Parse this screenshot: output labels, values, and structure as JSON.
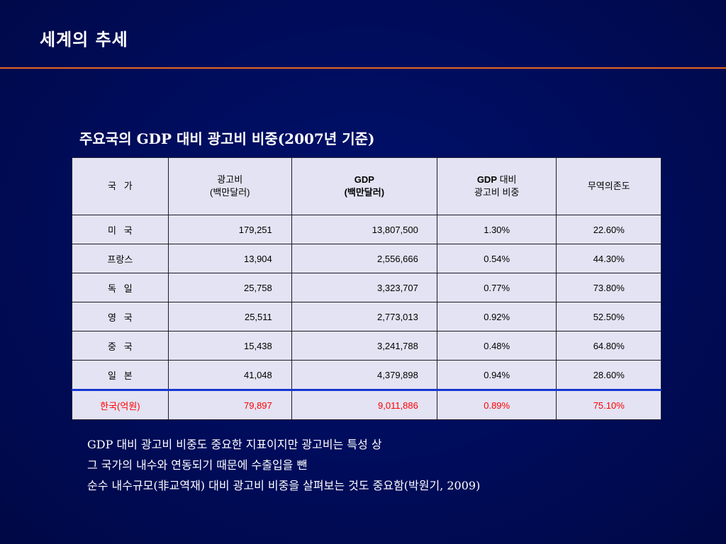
{
  "slide": {
    "title": "세계의 추세",
    "accent_color": "#e06a1f",
    "background_color": "#000c5a"
  },
  "table": {
    "caption": "주요국의 GDP 대비 광고비 비중(2007년 기준)",
    "headers": {
      "country": "국   가",
      "ad_line1": "광고비",
      "ad_line2": "(백만달러)",
      "gdp_line1": "GDP",
      "gdp_line2": "(백만달러)",
      "ratio_line1_bold": "GDP",
      "ratio_line1_rest": " 대비",
      "ratio_line2": "광고비 비중",
      "trade": "무역의존도"
    },
    "rows": [
      {
        "country": "미   국",
        "ad": "179,251",
        "gdp": "13,807,500",
        "ratio": "1.30%",
        "trade": "22.60%"
      },
      {
        "country": "프랑스",
        "ad": "13,904",
        "gdp": "2,556,666",
        "ratio": "0.54%",
        "trade": "44.30%"
      },
      {
        "country": "독   일",
        "ad": "25,758",
        "gdp": "3,323,707",
        "ratio": "0.77%",
        "trade": "73.80%"
      },
      {
        "country": "영   국",
        "ad": "25,511",
        "gdp": "2,773,013",
        "ratio": "0.92%",
        "trade": "52.50%"
      },
      {
        "country": "중   국",
        "ad": "15,438",
        "gdp": "3,241,788",
        "ratio": "0.48%",
        "trade": "64.80%"
      },
      {
        "country": "일   본",
        "ad": "41,048",
        "gdp": "4,379,898",
        "ratio": "0.94%",
        "trade": "28.60%"
      },
      {
        "country": "한국(억원)",
        "ad": "79,897",
        "gdp": "9,011,886",
        "ratio": "0.89%",
        "trade": "75.10%"
      }
    ],
    "highlight_color": "#ff0000"
  },
  "note": {
    "lines": [
      "GDP 대비 광고비 비중도 중요한 지표이지만 광고비는 특성 상",
      "그 국가의 내수와 연동되기 때문에 수출입을 뺀",
      "순수 내수규모(非교역재) 대비 광고비 비중을 살펴보는 것도 중요함(박원기, 2009)"
    ]
  }
}
